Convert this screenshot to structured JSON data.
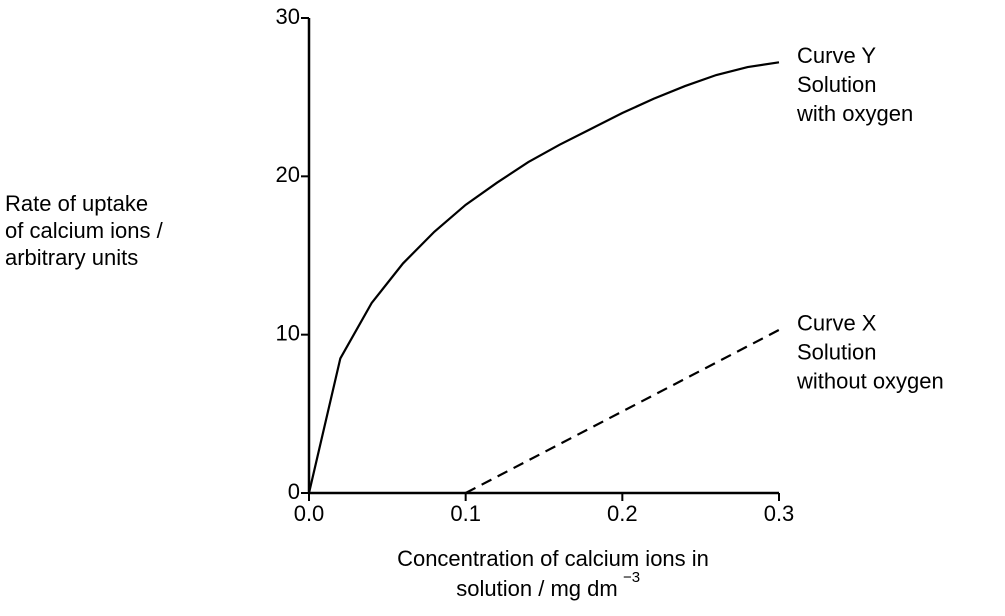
{
  "chart_data": {
    "type": "line",
    "ylabel": [
      "Rate of uptake",
      "of calcium ions /",
      "arbitrary units"
    ],
    "xlabel": [
      "Concentration of calcium ions in",
      "solution / mg dm"
    ],
    "xlabel_superscript": "−3",
    "xlim": [
      0,
      0.3
    ],
    "xticks": [
      {
        "value": 0,
        "label": "0.0"
      },
      0.1,
      0.2,
      0.3
    ],
    "ylim": [
      0,
      30
    ],
    "yticks": [
      0,
      10,
      20,
      30
    ],
    "series": [
      {
        "name": "Curve Y",
        "note": [
          "Solution",
          "with oxygen"
        ],
        "color": "#000000",
        "dash": false,
        "x": [
          0,
          0.02,
          0.04,
          0.06,
          0.08,
          0.1,
          0.12,
          0.14,
          0.16,
          0.18,
          0.2,
          0.22,
          0.24,
          0.26,
          0.28,
          0.3
        ],
        "values": [
          0,
          8.5,
          12,
          14.5,
          16.5,
          18.2,
          19.6,
          20.9,
          22,
          23,
          24,
          24.9,
          25.7,
          26.4,
          26.9,
          27.2
        ]
      },
      {
        "name": "Curve X",
        "note": [
          "Solution",
          "without oxygen"
        ],
        "color": "#000000",
        "dash": true,
        "x": [
          0.1,
          0.3
        ],
        "values": [
          0,
          10.3
        ]
      }
    ]
  }
}
